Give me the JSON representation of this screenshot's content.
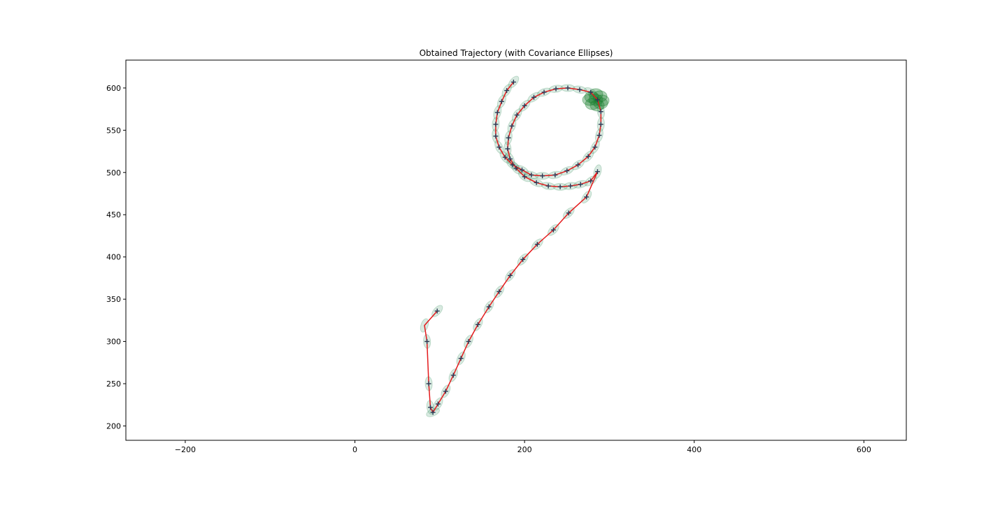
{
  "chart_data": {
    "type": "line",
    "title": "Obtained Trajectory (with Covariance Ellipses)",
    "xlabel": "",
    "ylabel": "",
    "xlim": [
      -270,
      650
    ],
    "ylim": [
      183,
      633
    ],
    "xticks": [
      -200,
      0,
      200,
      400,
      600
    ],
    "yticks": [
      200,
      250,
      300,
      350,
      400,
      450,
      500,
      550,
      600
    ],
    "grid": false,
    "legend": "none",
    "colors": {
      "trajectory": "#e41a1c",
      "markers": "#2b3a55",
      "ellipse": "#2e8b57",
      "ellipse_end": "#1a7f2e"
    },
    "series": [
      {
        "values_note_free": true,
        "x": [
          97,
          82,
          85,
          87,
          89,
          92,
          98,
          107,
          116,
          125,
          134,
          145,
          158,
          170,
          183,
          198,
          215,
          234,
          252,
          273,
          286,
          278,
          266,
          254,
          242,
          228,
          214,
          200,
          190,
          183,
          180,
          181,
          185,
          191,
          200,
          211,
          223,
          237,
          251,
          265,
          278,
          286,
          290,
          290,
          288,
          283,
          275,
          263,
          250,
          236,
          221,
          208,
          197,
          186,
          177,
          170,
          166,
          166,
          168,
          173,
          179,
          187
        ],
        "y": [
          336,
          319,
          300,
          250,
          222,
          216,
          226,
          241,
          260,
          280,
          300,
          320,
          341,
          359,
          378,
          397,
          415,
          432,
          452,
          471,
          501,
          490,
          486,
          484,
          483,
          484,
          488,
          495,
          505,
          516,
          528,
          541,
          555,
          568,
          579,
          589,
          595,
          599,
          600,
          598,
          595,
          586,
          572,
          557,
          544,
          530,
          519,
          509,
          502,
          497,
          496,
          497,
          503,
          509,
          518,
          530,
          543,
          557,
          571,
          584,
          597,
          607
        ]
      }
    ],
    "end_cluster": {
      "x": 284,
      "y": 586
    }
  }
}
